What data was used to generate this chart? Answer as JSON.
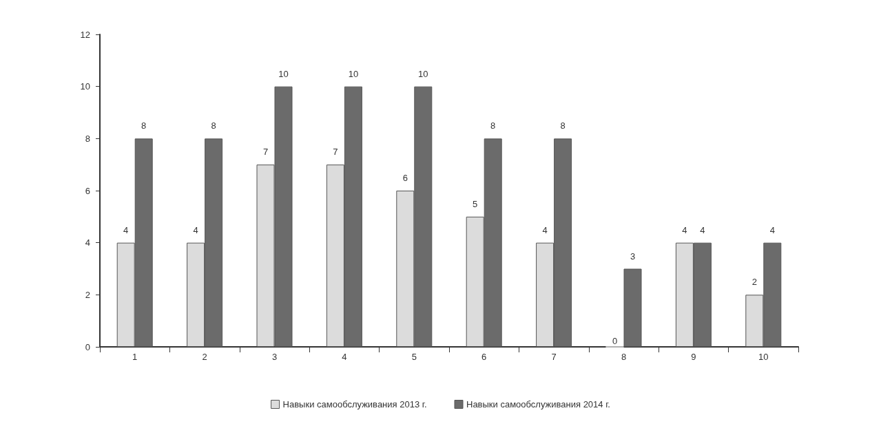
{
  "chart_data": {
    "type": "bar",
    "categories": [
      "1",
      "2",
      "3",
      "4",
      "5",
      "6",
      "7",
      "8",
      "9",
      "10"
    ],
    "series": [
      {
        "name": "Навыки самообслуживания 2013 г.",
        "color": "#dcdcdc",
        "values": [
          4,
          4,
          7,
          7,
          6,
          5,
          4,
          0,
          4,
          2
        ]
      },
      {
        "name": "Навыки самообслуживания 2014 г.",
        "color": "#6b6b6b",
        "values": [
          8,
          8,
          10,
          10,
          10,
          8,
          8,
          3,
          4,
          4
        ]
      }
    ],
    "ylim": [
      0,
      12
    ],
    "yticks": [
      0,
      2,
      4,
      6,
      8,
      10,
      12
    ],
    "grid": false,
    "legend": "bottom",
    "data_labels": true
  }
}
